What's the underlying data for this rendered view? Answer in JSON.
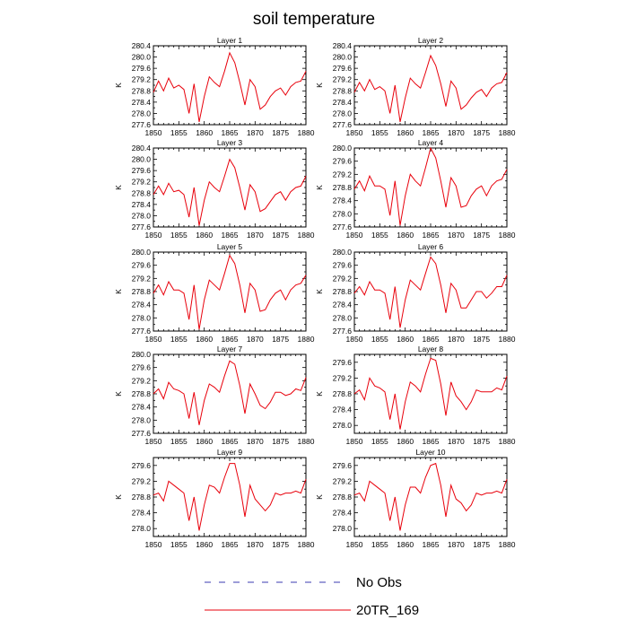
{
  "title": "soil temperature",
  "legend": [
    {
      "label": "No Obs",
      "color": "#3b3bb0",
      "dashed": true
    },
    {
      "label": "20TR_169",
      "color": "#e8000b",
      "dashed": false
    }
  ],
  "chart_data": [
    {
      "type": "line",
      "title": "Layer 1",
      "ylabel": "K",
      "xlim": [
        1850,
        1880
      ],
      "ylim": [
        277.6,
        280.4
      ],
      "xticks": [
        1850,
        1855,
        1860,
        1865,
        1870,
        1875,
        1880
      ],
      "yticks": [
        "277.6",
        "278.0",
        "278.4",
        "278.8",
        "279.2",
        "279.6",
        "280.0",
        "280.4"
      ],
      "series": [
        {
          "color": "#e8000b",
          "x": [
            1850,
            1851,
            1852,
            1853,
            1854,
            1855,
            1856,
            1857,
            1858,
            1859,
            1860,
            1861,
            1862,
            1863,
            1864,
            1865,
            1866,
            1867,
            1868,
            1869,
            1870,
            1871,
            1872,
            1873,
            1874,
            1875,
            1876,
            1877,
            1878,
            1879,
            1880
          ],
          "values": [
            278.75,
            279.15,
            278.8,
            279.25,
            278.9,
            279.0,
            278.85,
            278.0,
            279.05,
            277.7,
            278.6,
            279.3,
            279.1,
            278.95,
            279.5,
            280.15,
            279.8,
            279.1,
            278.3,
            279.2,
            278.95,
            278.15,
            278.3,
            278.6,
            278.8,
            278.9,
            278.65,
            278.95,
            279.1,
            279.15,
            279.5
          ]
        }
      ]
    },
    {
      "type": "line",
      "title": "Layer 2",
      "ylabel": "K",
      "xlim": [
        1850,
        1880
      ],
      "ylim": [
        277.6,
        280.4
      ],
      "xticks": [
        1850,
        1855,
        1860,
        1865,
        1870,
        1875,
        1880
      ],
      "yticks": [
        "277.6",
        "278.0",
        "278.4",
        "278.8",
        "279.2",
        "279.6",
        "280.0",
        "280.4"
      ],
      "series": [
        {
          "color": "#e8000b",
          "x": [
            1850,
            1851,
            1852,
            1853,
            1854,
            1855,
            1856,
            1857,
            1858,
            1859,
            1860,
            1861,
            1862,
            1863,
            1864,
            1865,
            1866,
            1867,
            1868,
            1869,
            1870,
            1871,
            1872,
            1873,
            1874,
            1875,
            1876,
            1877,
            1878,
            1879,
            1880
          ],
          "values": [
            278.75,
            279.1,
            278.8,
            279.2,
            278.85,
            278.95,
            278.8,
            278.0,
            279.0,
            277.7,
            278.55,
            279.25,
            279.05,
            278.9,
            279.45,
            280.05,
            279.7,
            279.05,
            278.25,
            279.15,
            278.9,
            278.15,
            278.3,
            278.55,
            278.75,
            278.85,
            278.6,
            278.9,
            279.05,
            279.1,
            279.45
          ]
        }
      ]
    },
    {
      "type": "line",
      "title": "Layer 3",
      "ylabel": "K",
      "xlim": [
        1850,
        1880
      ],
      "ylim": [
        277.6,
        280.4
      ],
      "xticks": [
        1850,
        1855,
        1860,
        1865,
        1870,
        1875,
        1880
      ],
      "yticks": [
        "277.6",
        "278.0",
        "278.4",
        "278.8",
        "279.2",
        "279.6",
        "280.0",
        "280.4"
      ],
      "series": [
        {
          "color": "#e8000b",
          "x": [
            1850,
            1851,
            1852,
            1853,
            1854,
            1855,
            1856,
            1857,
            1858,
            1859,
            1860,
            1861,
            1862,
            1863,
            1864,
            1865,
            1866,
            1867,
            1868,
            1869,
            1870,
            1871,
            1872,
            1873,
            1874,
            1875,
            1876,
            1877,
            1878,
            1879,
            1880
          ],
          "values": [
            278.75,
            279.05,
            278.75,
            279.15,
            278.85,
            278.9,
            278.75,
            277.95,
            279.0,
            277.65,
            278.55,
            279.2,
            279.0,
            278.85,
            279.4,
            280.0,
            279.7,
            279.0,
            278.2,
            279.1,
            278.85,
            278.15,
            278.25,
            278.5,
            278.75,
            278.85,
            278.55,
            278.85,
            279.0,
            279.05,
            279.4
          ]
        }
      ]
    },
    {
      "type": "line",
      "title": "Layer 4",
      "ylabel": "K",
      "xlim": [
        1850,
        1880
      ],
      "ylim": [
        277.6,
        280.0
      ],
      "xticks": [
        1850,
        1855,
        1860,
        1865,
        1870,
        1875,
        1880
      ],
      "yticks": [
        "277.6",
        "278.0",
        "278.4",
        "278.8",
        "279.2",
        "279.6",
        "280.0"
      ],
      "series": [
        {
          "color": "#e8000b",
          "x": [
            1850,
            1851,
            1852,
            1853,
            1854,
            1855,
            1856,
            1857,
            1858,
            1859,
            1860,
            1861,
            1862,
            1863,
            1864,
            1865,
            1866,
            1867,
            1868,
            1869,
            1870,
            1871,
            1872,
            1873,
            1874,
            1875,
            1876,
            1877,
            1878,
            1879,
            1880
          ],
          "values": [
            278.75,
            279.0,
            278.7,
            279.15,
            278.85,
            278.85,
            278.75,
            277.95,
            279.0,
            277.65,
            278.55,
            279.2,
            279.0,
            278.85,
            279.4,
            280.0,
            279.7,
            279.0,
            278.2,
            279.1,
            278.85,
            278.2,
            278.25,
            278.55,
            278.75,
            278.85,
            278.55,
            278.85,
            279.0,
            279.05,
            279.35
          ]
        }
      ]
    },
    {
      "type": "line",
      "title": "Layer 5",
      "ylabel": "K",
      "xlim": [
        1850,
        1880
      ],
      "ylim": [
        277.6,
        280.0
      ],
      "xticks": [
        1850,
        1855,
        1860,
        1865,
        1870,
        1875,
        1880
      ],
      "yticks": [
        "277.6",
        "278.0",
        "278.4",
        "278.8",
        "279.2",
        "279.6",
        "280.0"
      ],
      "series": [
        {
          "color": "#e8000b",
          "x": [
            1850,
            1851,
            1852,
            1853,
            1854,
            1855,
            1856,
            1857,
            1858,
            1859,
            1860,
            1861,
            1862,
            1863,
            1864,
            1865,
            1866,
            1867,
            1868,
            1869,
            1870,
            1871,
            1872,
            1873,
            1874,
            1875,
            1876,
            1877,
            1878,
            1879,
            1880
          ],
          "values": [
            278.75,
            279.0,
            278.7,
            279.1,
            278.85,
            278.85,
            278.75,
            277.95,
            279.0,
            277.65,
            278.55,
            279.15,
            279.0,
            278.85,
            279.35,
            279.9,
            279.65,
            279.0,
            278.15,
            279.05,
            278.85,
            278.2,
            278.25,
            278.55,
            278.75,
            278.85,
            278.55,
            278.85,
            279.0,
            279.05,
            279.3
          ]
        }
      ]
    },
    {
      "type": "line",
      "title": "Layer 6",
      "ylabel": "K",
      "xlim": [
        1850,
        1880
      ],
      "ylim": [
        277.6,
        280.0
      ],
      "xticks": [
        1850,
        1855,
        1860,
        1865,
        1870,
        1875,
        1880
      ],
      "yticks": [
        "277.6",
        "278.0",
        "278.4",
        "278.8",
        "279.2",
        "279.6",
        "280.0"
      ],
      "series": [
        {
          "color": "#e8000b",
          "x": [
            1850,
            1851,
            1852,
            1853,
            1854,
            1855,
            1856,
            1857,
            1858,
            1859,
            1860,
            1861,
            1862,
            1863,
            1864,
            1865,
            1866,
            1867,
            1868,
            1869,
            1870,
            1871,
            1872,
            1873,
            1874,
            1875,
            1876,
            1877,
            1878,
            1879,
            1880
          ],
          "values": [
            278.75,
            278.95,
            278.7,
            279.1,
            278.85,
            278.85,
            278.75,
            277.95,
            278.95,
            277.7,
            278.55,
            279.15,
            279.0,
            278.85,
            279.35,
            279.85,
            279.65,
            279.0,
            278.15,
            279.05,
            278.85,
            278.3,
            278.3,
            278.55,
            278.8,
            278.8,
            278.6,
            278.75,
            278.95,
            278.95,
            279.3
          ]
        }
      ]
    },
    {
      "type": "line",
      "title": "Layer 7",
      "ylabel": "K",
      "xlim": [
        1850,
        1880
      ],
      "ylim": [
        277.6,
        280.0
      ],
      "xticks": [
        1850,
        1855,
        1860,
        1865,
        1870,
        1875,
        1880
      ],
      "yticks": [
        "277.6",
        "278.0",
        "278.4",
        "278.8",
        "279.2",
        "279.6",
        "280.0"
      ],
      "series": [
        {
          "color": "#e8000b",
          "x": [
            1850,
            1851,
            1852,
            1853,
            1854,
            1855,
            1856,
            1857,
            1858,
            1859,
            1860,
            1861,
            1862,
            1863,
            1864,
            1865,
            1866,
            1867,
            1868,
            1869,
            1870,
            1871,
            1872,
            1873,
            1874,
            1875,
            1876,
            1877,
            1878,
            1879,
            1880
          ],
          "values": [
            278.8,
            278.95,
            278.65,
            279.15,
            278.95,
            278.9,
            278.8,
            278.05,
            278.85,
            277.85,
            278.6,
            279.1,
            279.0,
            278.85,
            279.35,
            279.8,
            279.7,
            279.05,
            278.2,
            279.1,
            278.8,
            278.45,
            278.35,
            278.55,
            278.85,
            278.85,
            278.75,
            278.8,
            278.95,
            278.9,
            279.3
          ]
        }
      ]
    },
    {
      "type": "line",
      "title": "Layer 8",
      "ylabel": "K",
      "xlim": [
        1850,
        1880
      ],
      "ylim": [
        277.8,
        279.8
      ],
      "xticks": [
        1850,
        1855,
        1860,
        1865,
        1870,
        1875,
        1880
      ],
      "yticks": [
        "278.0",
        "278.4",
        "278.8",
        "279.2",
        "279.6"
      ],
      "series": [
        {
          "color": "#e8000b",
          "x": [
            1850,
            1851,
            1852,
            1853,
            1854,
            1855,
            1856,
            1857,
            1858,
            1859,
            1860,
            1861,
            1862,
            1863,
            1864,
            1865,
            1866,
            1867,
            1868,
            1869,
            1870,
            1871,
            1872,
            1873,
            1874,
            1875,
            1876,
            1877,
            1878,
            1879,
            1880
          ],
          "values": [
            278.8,
            278.9,
            278.65,
            279.2,
            279.0,
            278.95,
            278.85,
            278.15,
            278.8,
            277.9,
            278.6,
            279.1,
            279.0,
            278.85,
            279.3,
            279.7,
            279.65,
            279.05,
            278.25,
            279.1,
            278.75,
            278.6,
            278.4,
            278.6,
            278.9,
            278.85,
            278.85,
            278.85,
            278.95,
            278.9,
            279.25
          ]
        }
      ]
    },
    {
      "type": "line",
      "title": "Layer 9",
      "ylabel": "K",
      "xlim": [
        1850,
        1880
      ],
      "ylim": [
        277.8,
        279.8
      ],
      "xticks": [
        1850,
        1855,
        1860,
        1865,
        1870,
        1875,
        1880
      ],
      "yticks": [
        "278.0",
        "278.4",
        "278.8",
        "279.2",
        "279.6"
      ],
      "series": [
        {
          "color": "#e8000b",
          "x": [
            1850,
            1851,
            1852,
            1853,
            1854,
            1855,
            1856,
            1857,
            1858,
            1859,
            1860,
            1861,
            1862,
            1863,
            1864,
            1865,
            1866,
            1867,
            1868,
            1869,
            1870,
            1871,
            1872,
            1873,
            1874,
            1875,
            1876,
            1877,
            1878,
            1879,
            1880
          ],
          "values": [
            278.85,
            278.9,
            278.7,
            279.2,
            279.1,
            279.0,
            278.9,
            278.2,
            278.8,
            277.95,
            278.6,
            279.1,
            279.05,
            278.9,
            279.3,
            279.65,
            279.65,
            279.1,
            278.3,
            279.1,
            278.75,
            278.6,
            278.45,
            278.6,
            278.9,
            278.85,
            278.9,
            278.9,
            278.95,
            278.9,
            279.25
          ]
        }
      ]
    },
    {
      "type": "line",
      "title": "Layer 10",
      "ylabel": "K",
      "xlim": [
        1850,
        1880
      ],
      "ylim": [
        277.8,
        279.8
      ],
      "xticks": [
        1850,
        1855,
        1860,
        1865,
        1870,
        1875,
        1880
      ],
      "yticks": [
        "278.0",
        "278.4",
        "278.8",
        "279.2",
        "279.6"
      ],
      "series": [
        {
          "color": "#e8000b",
          "x": [
            1850,
            1851,
            1852,
            1853,
            1854,
            1855,
            1856,
            1857,
            1858,
            1859,
            1860,
            1861,
            1862,
            1863,
            1864,
            1865,
            1866,
            1867,
            1868,
            1869,
            1870,
            1871,
            1872,
            1873,
            1874,
            1875,
            1876,
            1877,
            1878,
            1879,
            1880
          ],
          "values": [
            278.85,
            278.9,
            278.7,
            279.2,
            279.1,
            279.0,
            278.9,
            278.2,
            278.8,
            277.95,
            278.6,
            279.05,
            279.05,
            278.9,
            279.3,
            279.6,
            279.65,
            279.1,
            278.3,
            279.1,
            278.75,
            278.65,
            278.45,
            278.6,
            278.9,
            278.85,
            278.9,
            278.9,
            278.95,
            278.9,
            279.25
          ]
        }
      ]
    }
  ]
}
